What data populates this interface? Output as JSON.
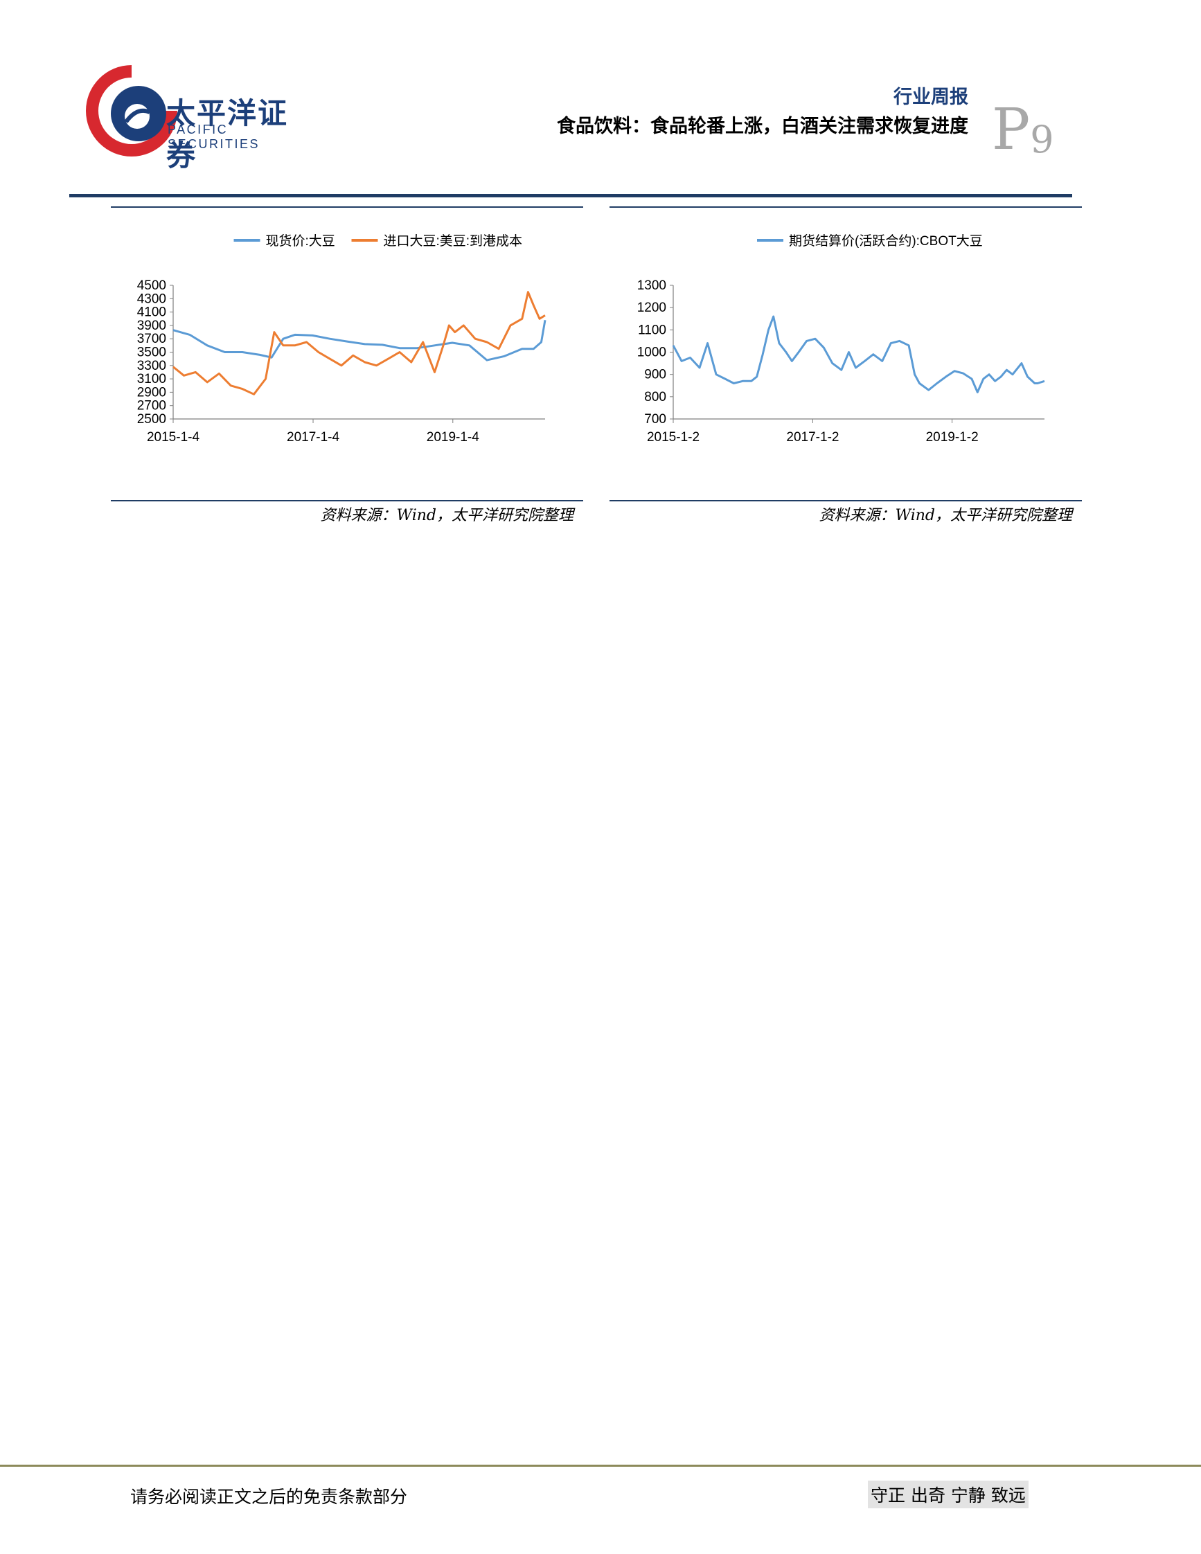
{
  "header": {
    "logo_cn": "太平洋证券",
    "logo_en": "PACIFIC SECURITIES",
    "report_type": "行业周报",
    "report_title": "食品饮料：食品轮番上涨，白酒关注需求恢复进度",
    "page_letter": "P",
    "page_number": "9"
  },
  "charts": [
    {
      "source": "资料来源：Wind，太平洋研究院整理"
    },
    {
      "source": "资料来源：Wind，太平洋研究院整理"
    }
  ],
  "chart_data": [
    {
      "type": "line",
      "title": "",
      "xlabel": "",
      "ylabel": "",
      "ylim": [
        2500,
        4500
      ],
      "yticks": [
        2500,
        2700,
        2900,
        3100,
        3300,
        3500,
        3700,
        3900,
        4100,
        4300,
        4500
      ],
      "xticks": [
        "2015-1-4",
        "2017-1-4",
        "2019-1-4"
      ],
      "x_range": [
        "2015-01-04",
        "2020-04-30"
      ],
      "legend": "top",
      "series": [
        {
          "name": "现货价:大豆",
          "color": "#5b9bd5",
          "x": [
            "2015-01-04",
            "2015-04-01",
            "2015-07-01",
            "2015-10-01",
            "2016-01-01",
            "2016-04-01",
            "2016-06-01",
            "2016-08-01",
            "2016-10-01",
            "2017-01-01",
            "2017-04-01",
            "2017-07-01",
            "2017-10-01",
            "2018-01-01",
            "2018-04-01",
            "2018-07-01",
            "2018-10-01",
            "2019-01-01",
            "2019-04-01",
            "2019-07-01",
            "2019-10-01",
            "2020-01-01",
            "2020-03-01",
            "2020-04-10",
            "2020-04-30"
          ],
          "values": [
            3830,
            3760,
            3600,
            3500,
            3500,
            3460,
            3420,
            3700,
            3760,
            3750,
            3700,
            3660,
            3620,
            3610,
            3560,
            3560,
            3600,
            3640,
            3600,
            3380,
            3440,
            3550,
            3550,
            3650,
            3980
          ]
        },
        {
          "name": "进口大豆:美豆:到港成本",
          "color": "#ed7d31",
          "x": [
            "2015-01-04",
            "2015-03-01",
            "2015-05-01",
            "2015-07-01",
            "2015-09-01",
            "2015-11-01",
            "2016-01-01",
            "2016-03-01",
            "2016-05-01",
            "2016-06-15",
            "2016-08-01",
            "2016-10-01",
            "2016-12-01",
            "2017-02-01",
            "2017-04-01",
            "2017-06-01",
            "2017-08-01",
            "2017-10-01",
            "2017-12-01",
            "2018-02-01",
            "2018-04-01",
            "2018-06-01",
            "2018-08-01",
            "2018-10-01",
            "2018-11-15",
            "2018-12-15",
            "2019-01-15",
            "2019-03-01",
            "2019-05-01",
            "2019-07-01",
            "2019-09-01",
            "2019-11-01",
            "2020-01-01",
            "2020-02-01",
            "2020-03-01",
            "2020-04-01",
            "2020-04-30"
          ],
          "values": [
            3280,
            3150,
            3200,
            3050,
            3180,
            3000,
            2950,
            2870,
            3100,
            3800,
            3600,
            3600,
            3650,
            3500,
            3400,
            3300,
            3450,
            3350,
            3300,
            3400,
            3500,
            3350,
            3650,
            3200,
            3600,
            3900,
            3800,
            3900,
            3700,
            3650,
            3550,
            3900,
            4000,
            4400,
            4200,
            4000,
            4050
          ]
        }
      ]
    },
    {
      "type": "line",
      "title": "",
      "xlabel": "",
      "ylabel": "",
      "ylim": [
        700,
        1300
      ],
      "yticks": [
        700,
        800,
        900,
        1000,
        1100,
        1200,
        1300
      ],
      "xticks": [
        "2015-1-2",
        "2017-1-2",
        "2019-1-2"
      ],
      "x_range": [
        "2015-01-02",
        "2020-04-30"
      ],
      "legend": "top",
      "series": [
        {
          "name": "期货结算价(活跃合约):CBOT大豆",
          "color": "#5b9bd5",
          "x": [
            "2015-01-02",
            "2015-02-15",
            "2015-04-01",
            "2015-05-20",
            "2015-07-01",
            "2015-08-15",
            "2015-10-01",
            "2015-11-15",
            "2016-01-01",
            "2016-02-15",
            "2016-03-15",
            "2016-04-15",
            "2016-05-15",
            "2016-06-10",
            "2016-07-10",
            "2016-08-15",
            "2016-09-15",
            "2016-10-20",
            "2016-12-01",
            "2017-01-15",
            "2017-03-01",
            "2017-04-15",
            "2017-06-01",
            "2017-07-10",
            "2017-08-15",
            "2017-10-01",
            "2017-11-15",
            "2018-01-01",
            "2018-02-15",
            "2018-04-01",
            "2018-05-20",
            "2018-06-20",
            "2018-07-15",
            "2018-09-01",
            "2018-10-15",
            "2018-12-01",
            "2019-01-15",
            "2019-03-01",
            "2019-04-15",
            "2019-05-15",
            "2019-06-15",
            "2019-07-15",
            "2019-08-15",
            "2019-09-15",
            "2019-10-15",
            "2019-11-15",
            "2020-01-01",
            "2020-02-01",
            "2020-03-10",
            "2020-03-25",
            "2020-04-30"
          ],
          "values": [
            1030,
            960,
            975,
            930,
            1040,
            900,
            880,
            860,
            870,
            870,
            890,
            990,
            1100,
            1160,
            1040,
            1000,
            960,
            1000,
            1050,
            1060,
            1020,
            950,
            920,
            1000,
            930,
            960,
            990,
            960,
            1040,
            1050,
            1030,
            900,
            860,
            830,
            860,
            890,
            915,
            905,
            880,
            820,
            880,
            900,
            870,
            890,
            920,
            900,
            950,
            890,
            860,
            860,
            870
          ]
        }
      ]
    }
  ]
}
